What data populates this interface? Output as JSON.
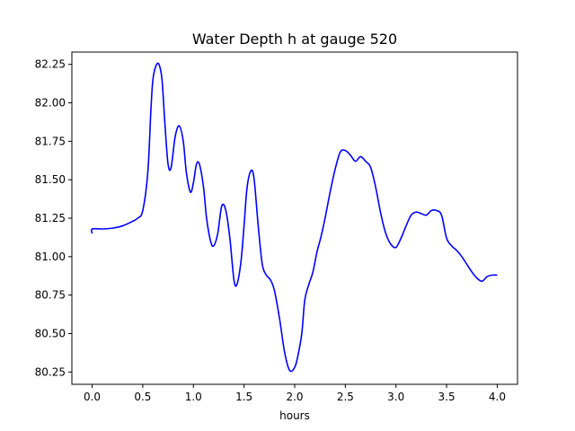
{
  "chart_data": {
    "type": "line",
    "title": "Water Depth h at gauge 520",
    "xlabel": "hours",
    "ylabel": "",
    "xlim": [
      -0.2,
      4.2
    ],
    "ylim": [
      80.17,
      82.33
    ],
    "grid": false,
    "x_ticks": [
      0.0,
      0.5,
      1.0,
      1.5,
      2.0,
      2.5,
      3.0,
      3.5,
      4.0
    ],
    "x_tick_labels": [
      "0.0",
      "0.5",
      "1.0",
      "1.5",
      "2.0",
      "2.5",
      "3.0",
      "3.5",
      "4.0"
    ],
    "y_ticks": [
      80.25,
      80.5,
      80.75,
      81.0,
      81.25,
      81.5,
      81.75,
      82.0,
      82.25
    ],
    "y_tick_labels": [
      "80.25",
      "80.50",
      "80.75",
      "81.00",
      "81.25",
      "81.50",
      "81.75",
      "82.00",
      "82.25"
    ],
    "series": [
      {
        "color": "#0000ff",
        "x": [
          0.0,
          0.0,
          0.1,
          0.2,
          0.3,
          0.4,
          0.45,
          0.5,
          0.55,
          0.58,
          0.6,
          0.63,
          0.66,
          0.69,
          0.72,
          0.75,
          0.78,
          0.82,
          0.86,
          0.9,
          0.93,
          0.97,
          1.0,
          1.03,
          1.06,
          1.1,
          1.13,
          1.17,
          1.2,
          1.24,
          1.28,
          1.32,
          1.36,
          1.4,
          1.43,
          1.47,
          1.5,
          1.53,
          1.57,
          1.6,
          1.64,
          1.68,
          1.72,
          1.76,
          1.8,
          1.85,
          1.9,
          1.95,
          2.0,
          2.03,
          2.07,
          2.1,
          2.14,
          2.18,
          2.22,
          2.26,
          2.3,
          2.35,
          2.4,
          2.45,
          2.5,
          2.55,
          2.6,
          2.65,
          2.7,
          2.75,
          2.8,
          2.85,
          2.9,
          2.95,
          3.0,
          3.05,
          3.1,
          3.15,
          3.2,
          3.25,
          3.3,
          3.35,
          3.4,
          3.45,
          3.5,
          3.55,
          3.6,
          3.65,
          3.7,
          3.75,
          3.8,
          3.85,
          3.9,
          3.95,
          4.0
        ],
        "y": [
          81.15,
          81.18,
          81.18,
          81.185,
          81.2,
          81.23,
          81.25,
          81.3,
          81.55,
          81.95,
          82.15,
          82.24,
          82.25,
          82.15,
          81.85,
          81.6,
          81.58,
          81.78,
          81.85,
          81.75,
          81.55,
          81.42,
          81.48,
          81.6,
          81.6,
          81.45,
          81.25,
          81.1,
          81.07,
          81.15,
          81.33,
          81.3,
          81.12,
          80.85,
          80.82,
          80.97,
          81.2,
          81.45,
          81.56,
          81.5,
          81.2,
          80.95,
          80.88,
          80.85,
          80.78,
          80.6,
          80.38,
          80.26,
          80.28,
          80.35,
          80.5,
          80.72,
          80.82,
          80.9,
          81.03,
          81.13,
          81.25,
          81.42,
          81.57,
          81.68,
          81.69,
          81.66,
          81.62,
          81.65,
          81.62,
          81.58,
          81.45,
          81.28,
          81.15,
          81.08,
          81.06,
          81.12,
          81.2,
          81.27,
          81.29,
          81.28,
          81.27,
          81.3,
          81.3,
          81.27,
          81.12,
          81.07,
          81.04,
          81.0,
          80.95,
          80.9,
          80.86,
          80.84,
          80.87,
          80.88,
          80.88
        ]
      }
    ]
  }
}
